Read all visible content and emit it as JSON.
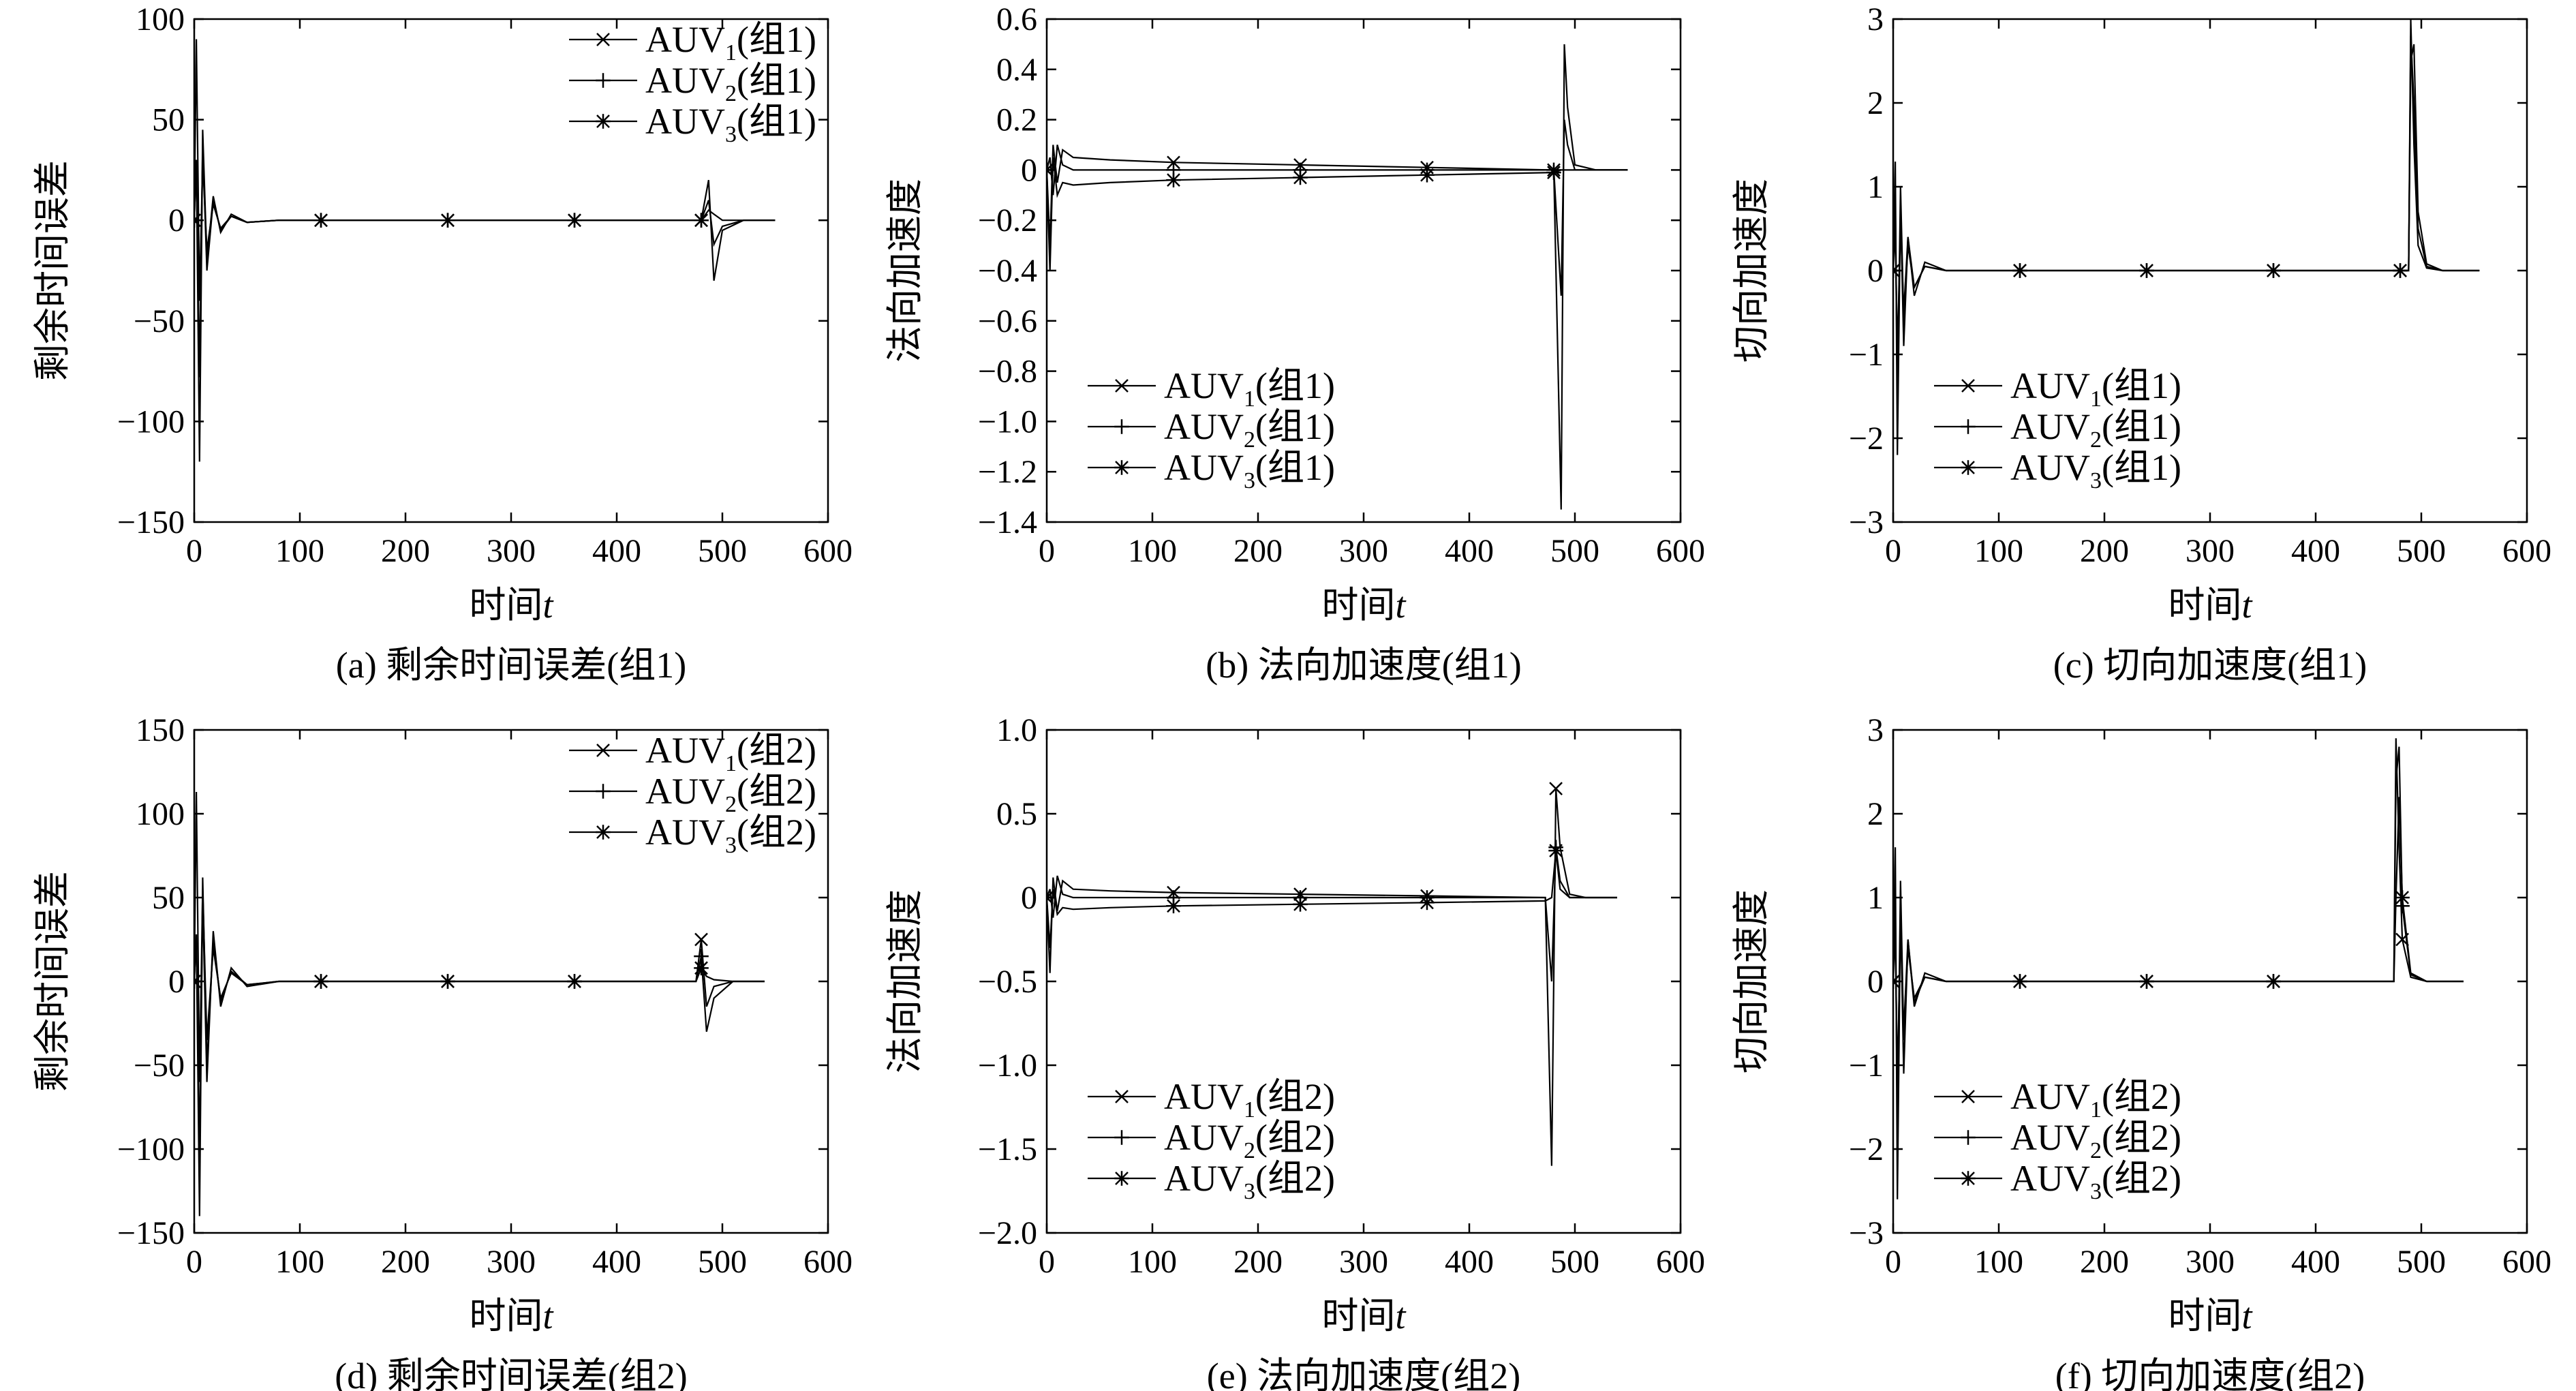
{
  "chart_data": [
    {
      "panel": "a",
      "type": "line",
      "caption": "(a) 剩余时间误差(组1)",
      "xlabel": "时间",
      "xlabel_italic": "t",
      "ylabel": "剩余时间误差",
      "xlim": [
        0,
        600
      ],
      "ylim": [
        -150,
        100
      ],
      "xticks": [
        "0",
        "100",
        "200",
        "300",
        "400",
        "500",
        "600"
      ],
      "yticks": [
        "−150",
        "−100",
        "−50",
        "0",
        "50",
        "100"
      ],
      "legend_position": "top-right",
      "series": [
        {
          "name": "AUV",
          "sub": "1",
          "suffix": "(组1)",
          "marker": "x",
          "x": [
            0,
            2,
            5,
            8,
            12,
            18,
            25,
            35,
            50,
            80,
            120,
            240,
            360,
            480,
            487,
            492,
            500,
            520,
            550
          ],
          "y": [
            0,
            90,
            -40,
            30,
            -15,
            8,
            -4,
            2,
            -1,
            0,
            0,
            0,
            0,
            0,
            5,
            3,
            0,
            0,
            0
          ]
        },
        {
          "name": "AUV",
          "sub": "2",
          "suffix": "(组1)",
          "marker": "+",
          "x": [
            0,
            2,
            5,
            8,
            12,
            18,
            25,
            35,
            50,
            80,
            120,
            240,
            360,
            480,
            487,
            492,
            500,
            520,
            550
          ],
          "y": [
            0,
            30,
            -120,
            45,
            -20,
            12,
            -6,
            3,
            -1,
            0,
            0,
            0,
            0,
            0,
            20,
            -30,
            -5,
            0,
            0
          ]
        },
        {
          "name": "AUV",
          "sub": "3",
          "suffix": "(组1)",
          "marker": "*",
          "x": [
            0,
            2,
            5,
            8,
            12,
            18,
            25,
            35,
            50,
            80,
            120,
            240,
            360,
            480,
            487,
            492,
            500,
            520,
            550
          ],
          "y": [
            0,
            30,
            -78,
            38,
            -25,
            10,
            -5,
            2,
            -1,
            0,
            0,
            0,
            0,
            0,
            10,
            -12,
            -3,
            0,
            0
          ]
        }
      ]
    },
    {
      "panel": "b",
      "type": "line",
      "caption": "(b) 法向加速度(组1)",
      "xlabel": "时间",
      "xlabel_italic": "t",
      "ylabel": "法向加速度",
      "xlim": [
        0,
        600
      ],
      "ylim": [
        -1.4,
        0.6
      ],
      "xticks": [
        "0",
        "100",
        "200",
        "300",
        "400",
        "500",
        "600"
      ],
      "yticks": [
        "−1.4",
        "−1.2",
        "−1.0",
        "−0.8",
        "−0.6",
        "−0.4",
        "−0.2",
        "0",
        "0.2",
        "0.4",
        "0.6"
      ],
      "legend_position": "bottom-left",
      "series": [
        {
          "name": "AUV",
          "sub": "1",
          "suffix": "(组1)",
          "marker": "x",
          "x": [
            0,
            3,
            6,
            10,
            15,
            25,
            60,
            120,
            240,
            360,
            480,
            487,
            490,
            493,
            500,
            520,
            550
          ],
          "y": [
            0,
            -0.3,
            0.1,
            -0.05,
            0.08,
            0.05,
            0.04,
            0.03,
            0.02,
            0.01,
            0.0,
            -1.35,
            0.5,
            0.25,
            0.02,
            0.0,
            0.0
          ]
        },
        {
          "name": "AUV",
          "sub": "2",
          "suffix": "(组1)",
          "marker": "+",
          "x": [
            0,
            3,
            6,
            10,
            15,
            25,
            60,
            120,
            240,
            360,
            480,
            487,
            490,
            493,
            500,
            520,
            550
          ],
          "y": [
            0,
            0.05,
            -0.1,
            0.1,
            0.02,
            0.0,
            0.0,
            0.0,
            0.0,
            0.0,
            0.0,
            -0.5,
            0.2,
            0.1,
            0.0,
            0.0,
            0.0
          ]
        },
        {
          "name": "AUV",
          "sub": "3",
          "suffix": "(组1)",
          "marker": "*",
          "x": [
            0,
            3,
            6,
            10,
            15,
            25,
            60,
            120,
            240,
            360,
            480,
            487,
            490,
            493,
            500,
            520,
            550
          ],
          "y": [
            0,
            -0.4,
            0.05,
            -0.1,
            -0.05,
            -0.06,
            -0.05,
            -0.04,
            -0.03,
            -0.02,
            -0.01,
            0.0,
            0.0,
            0.0,
            0.0,
            0.0,
            0.0
          ]
        }
      ]
    },
    {
      "panel": "c",
      "type": "line",
      "caption": "(c) 切向加速度(组1)",
      "xlabel": "时间",
      "xlabel_italic": "t",
      "ylabel": "切向加速度",
      "xlim": [
        0,
        600
      ],
      "ylim": [
        -3,
        3
      ],
      "xticks": [
        "0",
        "100",
        "200",
        "300",
        "400",
        "500",
        "600"
      ],
      "yticks": [
        "−3",
        "−2",
        "−1",
        "0",
        "1",
        "2",
        "3"
      ],
      "legend_position": "bottom-left",
      "series": [
        {
          "name": "AUV",
          "sub": "1",
          "suffix": "(组1)",
          "marker": "x",
          "x": [
            0,
            2,
            4,
            7,
            10,
            14,
            20,
            30,
            50,
            120,
            240,
            360,
            480,
            488,
            490,
            493,
            497,
            505,
            520,
            555
          ],
          "y": [
            0,
            1.3,
            -2.2,
            0.8,
            -0.9,
            0.4,
            -0.3,
            0.1,
            0,
            0,
            0,
            0,
            0,
            0,
            2.8,
            2.0,
            0.5,
            0.05,
            0,
            0
          ]
        },
        {
          "name": "AUV",
          "sub": "2",
          "suffix": "(组1)",
          "marker": "+",
          "x": [
            0,
            2,
            4,
            7,
            10,
            14,
            20,
            30,
            50,
            120,
            240,
            360,
            480,
            488,
            490,
            493,
            497,
            505,
            520,
            555
          ],
          "y": [
            0,
            0.9,
            -1.6,
            1.0,
            -0.6,
            0.3,
            -0.2,
            0.05,
            0,
            0,
            0,
            0,
            0,
            0,
            2.5,
            2.7,
            0.7,
            0.08,
            0,
            0
          ]
        },
        {
          "name": "AUV",
          "sub": "3",
          "suffix": "(组1)",
          "marker": "*",
          "x": [
            0,
            2,
            4,
            7,
            10,
            14,
            20,
            30,
            50,
            120,
            240,
            360,
            480,
            488,
            490,
            493,
            497,
            505,
            520,
            555
          ],
          "y": [
            0,
            0.5,
            -1.0,
            0.6,
            -0.5,
            0.4,
            -0.2,
            0.05,
            0,
            0,
            0,
            0,
            0,
            0,
            3.0,
            1.5,
            0.3,
            0.03,
            0,
            0
          ]
        }
      ]
    },
    {
      "panel": "d",
      "type": "line",
      "caption": "(d) 剩余时间误差(组2)",
      "xlabel": "时间",
      "xlabel_italic": "t",
      "ylabel": "剩余时间误差",
      "xlim": [
        0,
        600
      ],
      "ylim": [
        -150,
        150
      ],
      "xticks": [
        "0",
        "100",
        "200",
        "300",
        "400",
        "500",
        "600"
      ],
      "yticks": [
        "−150",
        "−100",
        "−50",
        "0",
        "50",
        "100",
        "150"
      ],
      "legend_position": "top-right",
      "series": [
        {
          "name": "AUV",
          "sub": "1",
          "suffix": "(组2)",
          "marker": "x",
          "x": [
            0,
            2,
            5,
            8,
            12,
            18,
            25,
            35,
            50,
            80,
            120,
            240,
            360,
            475,
            480,
            485,
            492,
            510,
            540
          ],
          "y": [
            0,
            113,
            -60,
            55,
            -35,
            20,
            -10,
            5,
            -2,
            0,
            0,
            0,
            0,
            0,
            25,
            -15,
            -3,
            0,
            0
          ]
        },
        {
          "name": "AUV",
          "sub": "2",
          "suffix": "(组2)",
          "marker": "+",
          "x": [
            0,
            2,
            5,
            8,
            12,
            18,
            25,
            35,
            50,
            80,
            120,
            240,
            360,
            475,
            480,
            485,
            492,
            510,
            540
          ],
          "y": [
            0,
            28,
            -140,
            62,
            -50,
            25,
            -12,
            6,
            -2,
            0,
            0,
            0,
            0,
            0,
            15,
            -30,
            -10,
            0,
            0
          ]
        },
        {
          "name": "AUV",
          "sub": "3",
          "suffix": "(组2)",
          "marker": "*",
          "x": [
            0,
            2,
            5,
            8,
            12,
            18,
            25,
            35,
            50,
            80,
            120,
            240,
            360,
            475,
            480,
            485,
            492,
            510,
            540
          ],
          "y": [
            0,
            28,
            -103,
            50,
            -60,
            30,
            -15,
            8,
            -3,
            0,
            0,
            0,
            0,
            0,
            8,
            3,
            1,
            0,
            0
          ]
        }
      ]
    },
    {
      "panel": "e",
      "type": "line",
      "caption": "(e) 法向加速度(组2)",
      "xlabel": "时间",
      "xlabel_italic": "t",
      "ylabel": "法向加速度",
      "xlim": [
        0,
        600
      ],
      "ylim": [
        -2.0,
        1.0
      ],
      "xticks": [
        "0",
        "100",
        "200",
        "300",
        "400",
        "500",
        "600"
      ],
      "yticks": [
        "−2.0",
        "−1.5",
        "−1.0",
        "−0.5",
        "0",
        "0.5",
        "1.0"
      ],
      "legend_position": "bottom-left",
      "series": [
        {
          "name": "AUV",
          "sub": "1",
          "suffix": "(组2)",
          "marker": "x",
          "x": [
            0,
            3,
            6,
            10,
            15,
            25,
            60,
            120,
            240,
            360,
            472,
            478,
            482,
            486,
            495,
            510,
            540
          ],
          "y": [
            0,
            -0.45,
            0.12,
            -0.08,
            0.1,
            0.05,
            0.04,
            0.03,
            0.02,
            0.01,
            0.0,
            -1.6,
            0.65,
            0.3,
            0.02,
            0.0,
            0.0
          ]
        },
        {
          "name": "AUV",
          "sub": "2",
          "suffix": "(组2)",
          "marker": "+",
          "x": [
            0,
            3,
            6,
            10,
            15,
            25,
            60,
            120,
            240,
            360,
            472,
            478,
            482,
            486,
            495,
            510,
            540
          ],
          "y": [
            0,
            0.05,
            -0.12,
            0.13,
            0.02,
            0.0,
            0.0,
            0.0,
            0.0,
            0.0,
            0.0,
            -0.5,
            0.3,
            0.1,
            0.0,
            0.0,
            0.0
          ]
        },
        {
          "name": "AUV",
          "sub": "3",
          "suffix": "(组2)",
          "marker": "*",
          "x": [
            0,
            3,
            6,
            10,
            15,
            25,
            60,
            120,
            240,
            360,
            472,
            478,
            482,
            486,
            495,
            510,
            540
          ],
          "y": [
            0,
            -0.3,
            0.05,
            -0.1,
            -0.06,
            -0.07,
            -0.06,
            -0.05,
            -0.04,
            -0.03,
            -0.02,
            0.0,
            0.28,
            0.05,
            0.0,
            0.0,
            0.0
          ]
        }
      ]
    },
    {
      "panel": "f",
      "type": "line",
      "caption": "(f) 切向加速度(组2)",
      "xlabel": "时间",
      "xlabel_italic": "t",
      "ylabel": "切向加速度",
      "xlim": [
        0,
        600
      ],
      "ylim": [
        -3,
        3
      ],
      "xticks": [
        "0",
        "100",
        "200",
        "300",
        "400",
        "500",
        "600"
      ],
      "yticks": [
        "−3",
        "−2",
        "−1",
        "0",
        "1",
        "2",
        "3"
      ],
      "legend_position": "bottom-left",
      "series": [
        {
          "name": "AUV",
          "sub": "1",
          "suffix": "(组2)",
          "marker": "x",
          "x": [
            0,
            2,
            4,
            7,
            10,
            14,
            20,
            30,
            50,
            120,
            240,
            360,
            474,
            476,
            479,
            482,
            490,
            505,
            540
          ],
          "y": [
            0,
            1.6,
            -2.6,
            0.9,
            -1.1,
            0.5,
            -0.3,
            0.1,
            0,
            0,
            0,
            0,
            0,
            2.9,
            1.6,
            0.5,
            0.05,
            0,
            0
          ]
        },
        {
          "name": "AUV",
          "sub": "2",
          "suffix": "(组2)",
          "marker": "+",
          "x": [
            0,
            2,
            4,
            7,
            10,
            14,
            20,
            30,
            50,
            120,
            240,
            360,
            474,
            476,
            479,
            482,
            490,
            505,
            540
          ],
          "y": [
            0,
            1.0,
            -1.8,
            1.2,
            -0.7,
            0.4,
            -0.2,
            0.05,
            0,
            0,
            0,
            0,
            0,
            2.4,
            2.8,
            0.9,
            0.08,
            0,
            0
          ]
        },
        {
          "name": "AUV",
          "sub": "3",
          "suffix": "(组2)",
          "marker": "*",
          "x": [
            0,
            2,
            4,
            7,
            10,
            14,
            20,
            30,
            50,
            120,
            240,
            360,
            474,
            476,
            479,
            482,
            490,
            505,
            540
          ],
          "y": [
            0,
            0.6,
            -1.2,
            0.7,
            -0.6,
            0.5,
            -0.25,
            0.05,
            0,
            0,
            0,
            0,
            0,
            1.0,
            2.2,
            1.0,
            0.1,
            0,
            0
          ]
        }
      ]
    }
  ]
}
